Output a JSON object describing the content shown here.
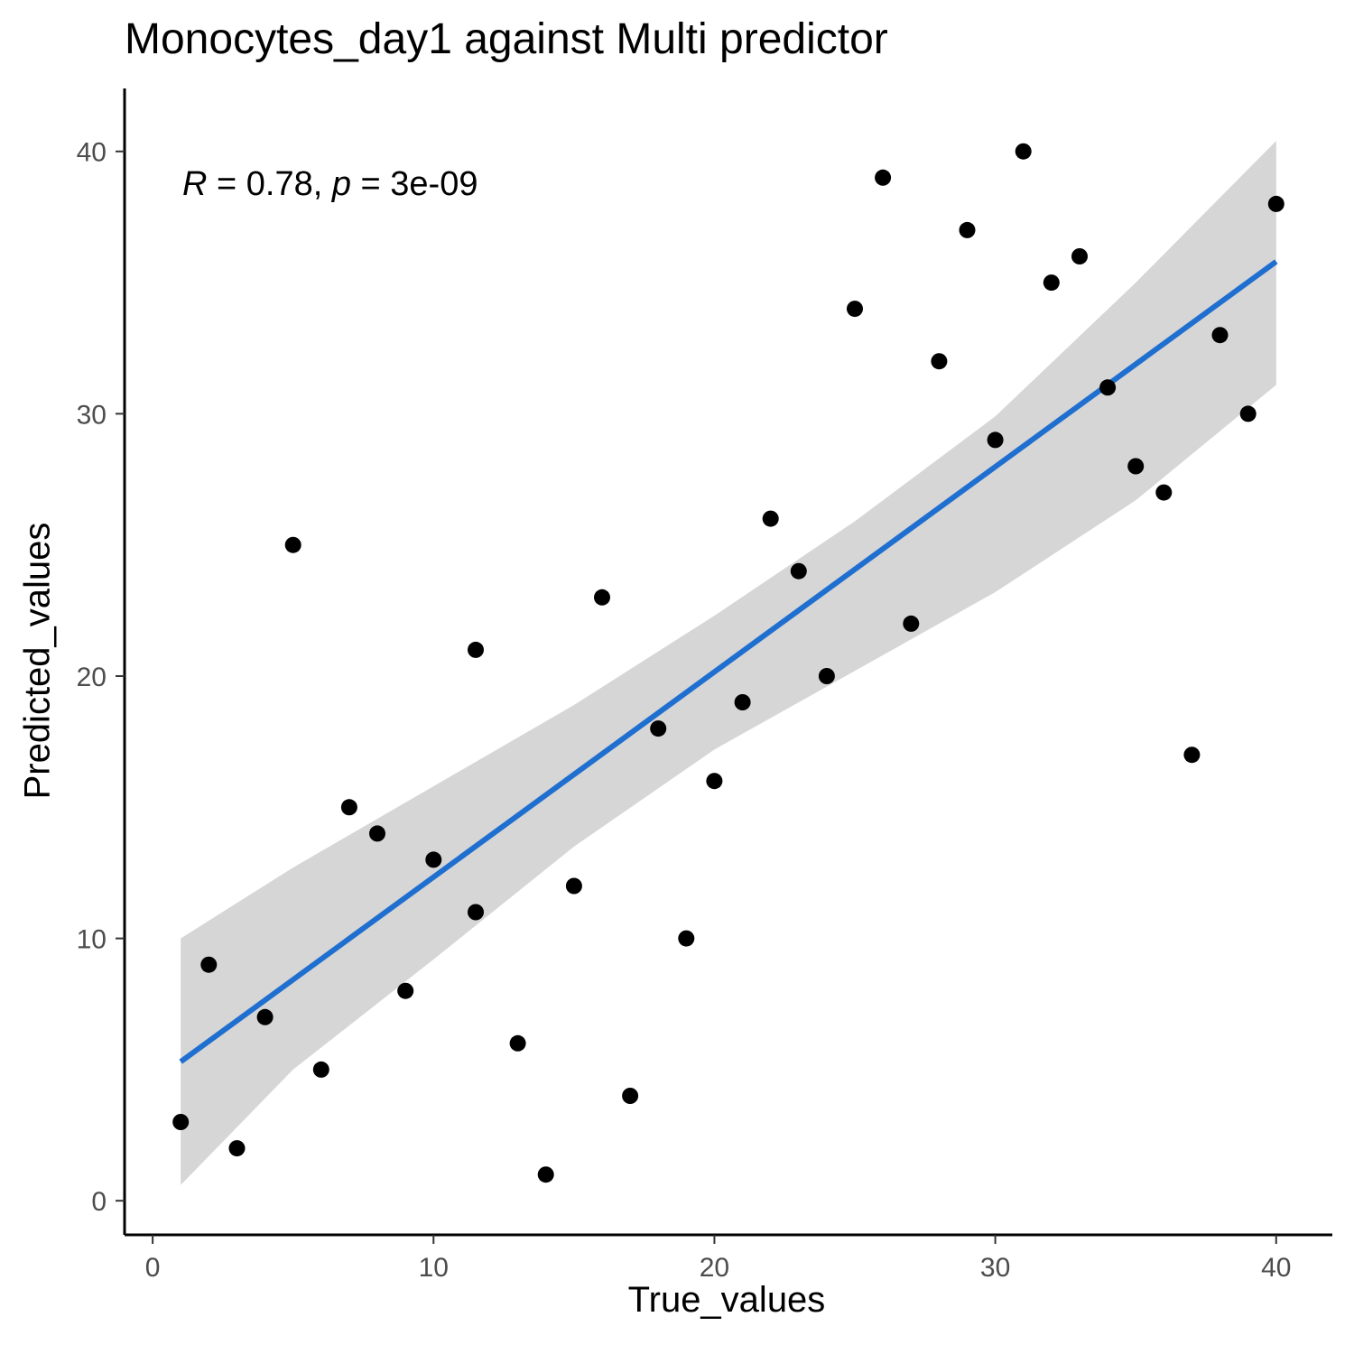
{
  "chart_data": {
    "type": "scatter",
    "title": "Monocytes_day1 against Multi predictor",
    "xlabel": "True_values",
    "ylabel": "Predicted_values",
    "xlim": [
      -1,
      42
    ],
    "ylim": [
      -1.3,
      42.4
    ],
    "xticks": [
      "0",
      "10",
      "20",
      "30",
      "40"
    ],
    "yticks": [
      "0",
      "10",
      "20",
      "30",
      "40"
    ],
    "annotation": {
      "r_symbol": "R",
      "r_text": " = 0.78, ",
      "p_symbol": "p",
      "p_text": " = 3e-09"
    },
    "points": [
      {
        "x": 1,
        "y": 3
      },
      {
        "x": 2,
        "y": 9
      },
      {
        "x": 3,
        "y": 2
      },
      {
        "x": 4,
        "y": 7
      },
      {
        "x": 5,
        "y": 25
      },
      {
        "x": 6,
        "y": 5
      },
      {
        "x": 7,
        "y": 15
      },
      {
        "x": 8,
        "y": 14
      },
      {
        "x": 9,
        "y": 8
      },
      {
        "x": 10,
        "y": 13
      },
      {
        "x": 11.5,
        "y": 21
      },
      {
        "x": 11.5,
        "y": 11
      },
      {
        "x": 13,
        "y": 6
      },
      {
        "x": 14,
        "y": 1
      },
      {
        "x": 15,
        "y": 12
      },
      {
        "x": 16,
        "y": 23
      },
      {
        "x": 17,
        "y": 4
      },
      {
        "x": 18,
        "y": 18
      },
      {
        "x": 19,
        "y": 10
      },
      {
        "x": 20,
        "y": 16
      },
      {
        "x": 21,
        "y": 19
      },
      {
        "x": 22,
        "y": 26
      },
      {
        "x": 23,
        "y": 24
      },
      {
        "x": 24,
        "y": 20
      },
      {
        "x": 25,
        "y": 34
      },
      {
        "x": 26,
        "y": 39
      },
      {
        "x": 27,
        "y": 22
      },
      {
        "x": 28,
        "y": 32
      },
      {
        "x": 29,
        "y": 37
      },
      {
        "x": 30,
        "y": 29
      },
      {
        "x": 31,
        "y": 40
      },
      {
        "x": 32,
        "y": 35
      },
      {
        "x": 33,
        "y": 36
      },
      {
        "x": 34,
        "y": 31
      },
      {
        "x": 35,
        "y": 28
      },
      {
        "x": 36,
        "y": 27
      },
      {
        "x": 37,
        "y": 17
      },
      {
        "x": 38,
        "y": 33
      },
      {
        "x": 39,
        "y": 30
      },
      {
        "x": 40,
        "y": 38
      }
    ],
    "regression": {
      "x": [
        1,
        40
      ],
      "y": [
        5.3,
        35.8
      ],
      "band_x": [
        1,
        5,
        10,
        15,
        20,
        25,
        30,
        35,
        40
      ],
      "band_upper": [
        10.0,
        12.7,
        15.8,
        18.9,
        22.3,
        25.9,
        29.9,
        35.0,
        40.4
      ],
      "band_lower": [
        0.6,
        5.0,
        9.2,
        13.5,
        17.2,
        20.2,
        23.2,
        26.7,
        31.1
      ]
    },
    "point_color": "#000000",
    "line_color": "#1f6fd0",
    "band_color": "#d6d6d6",
    "grid": false
  }
}
